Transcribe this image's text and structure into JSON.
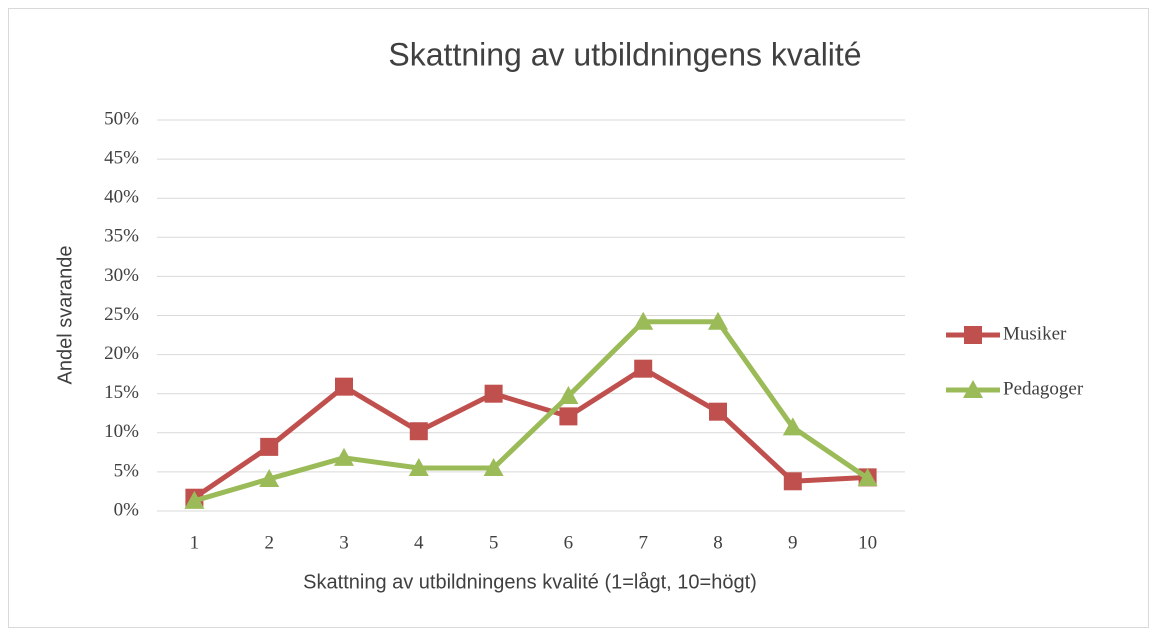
{
  "chart_data": {
    "type": "line",
    "title": "Skattning av utbildningens kvalité",
    "x_label": "Skattning av utbildningens kvalité (1=lågt, 10=högt)",
    "y_label": "Andel svarande",
    "categories": [
      "1",
      "2",
      "3",
      "4",
      "5",
      "6",
      "7",
      "8",
      "9",
      "10"
    ],
    "series": [
      {
        "name": "Musiker",
        "color": "#c0504d",
        "marker": "square",
        "values": [
          1.7,
          8.2,
          15.9,
          10.2,
          15,
          12.1,
          18.2,
          12.7,
          3.8,
          4.3
        ]
      },
      {
        "name": "Pedagoger",
        "color": "#9bbb59",
        "marker": "triangle",
        "values": [
          1.3,
          4.1,
          6.8,
          5.5,
          5.5,
          14.7,
          24.2,
          24.2,
          10.7,
          4.2
        ]
      }
    ],
    "ylim": [
      0,
      50
    ],
    "yticks": [
      {
        "value": 0,
        "label": "0%"
      },
      {
        "value": 5,
        "label": "5%"
      },
      {
        "value": 10,
        "label": "10%"
      },
      {
        "value": 15,
        "label": "15%"
      },
      {
        "value": 20,
        "label": "20%"
      },
      {
        "value": 25,
        "label": "25%"
      },
      {
        "value": 30,
        "label": "30%"
      },
      {
        "value": 35,
        "label": "35%"
      },
      {
        "value": 40,
        "label": "40%"
      },
      {
        "value": 45,
        "label": "45%"
      },
      {
        "value": 50,
        "label": "50%"
      }
    ],
    "grid": true,
    "legend": "right"
  }
}
